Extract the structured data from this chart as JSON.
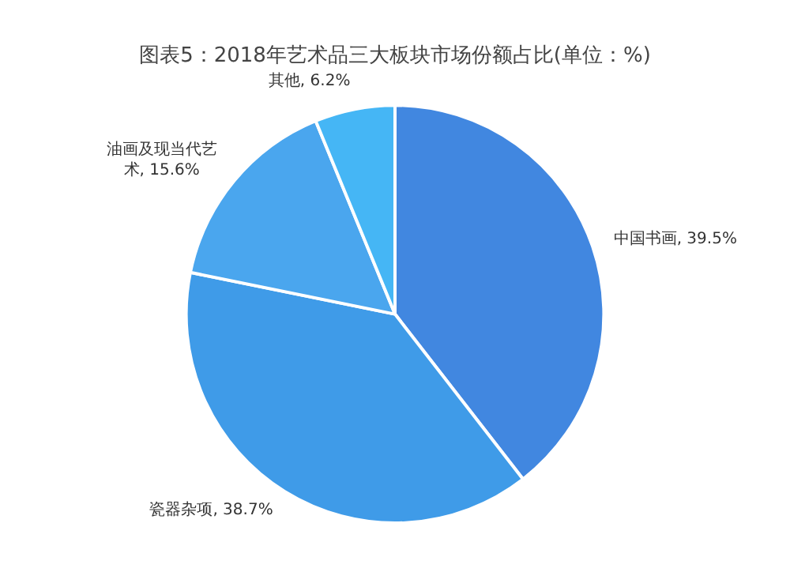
{
  "chart_data": {
    "type": "pie",
    "title": "图表5：2018年艺术品三大板块市场份额占比(单位：%)",
    "categories": [
      "中国书画",
      "瓷器杂项",
      "油画及现当代艺术",
      "其他"
    ],
    "values": [
      39.5,
      38.7,
      15.6,
      6.2
    ],
    "value_labels": [
      "39.5%",
      "38.7%",
      "15.6%",
      "6.2%"
    ],
    "colors": [
      "#4187e0",
      "#3f9be8",
      "#4aa6ee",
      "#45b6f5"
    ],
    "legend": false
  }
}
